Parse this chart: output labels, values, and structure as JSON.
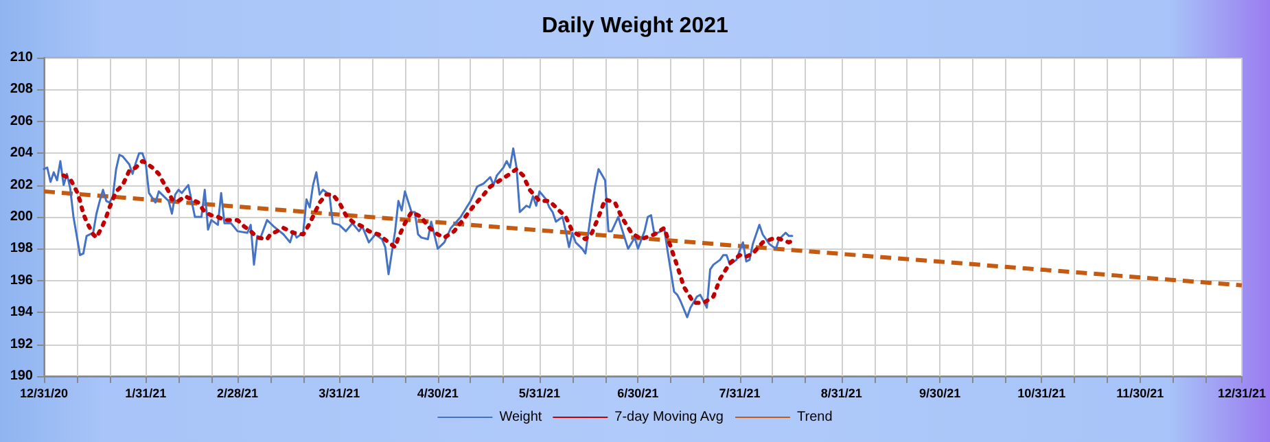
{
  "chart_data": {
    "type": "line",
    "title": "Daily Weight 2021",
    "xlim": [
      "2020-12-31",
      "2021-12-31"
    ],
    "xticks": [
      {
        "value": "2020-12-31",
        "label": "12/31/20"
      },
      {
        "value": "2021-01-10",
        "label": null
      },
      {
        "value": "2021-01-20",
        "label": null
      },
      {
        "value": "2021-01-31",
        "label": "1/31/21"
      },
      {
        "value": "2021-02-10",
        "label": null
      },
      {
        "value": "2021-02-20",
        "label": null
      },
      {
        "value": "2021-02-28",
        "label": "2/28/21"
      },
      {
        "value": "2021-03-10",
        "label": null
      },
      {
        "value": "2021-03-20",
        "label": null
      },
      {
        "value": "2021-03-31",
        "label": "3/31/21"
      },
      {
        "value": "2021-04-10",
        "label": null
      },
      {
        "value": "2021-04-20",
        "label": null
      },
      {
        "value": "2021-04-30",
        "label": "4/30/21"
      },
      {
        "value": "2021-05-10",
        "label": null
      },
      {
        "value": "2021-05-20",
        "label": null
      },
      {
        "value": "2021-05-31",
        "label": "5/31/21"
      },
      {
        "value": "2021-06-10",
        "label": null
      },
      {
        "value": "2021-06-20",
        "label": null
      },
      {
        "value": "2021-06-30",
        "label": "6/30/21"
      },
      {
        "value": "2021-07-10",
        "label": null
      },
      {
        "value": "2021-07-20",
        "label": null
      },
      {
        "value": "2021-07-31",
        "label": "7/31/21"
      },
      {
        "value": "2021-08-10",
        "label": null
      },
      {
        "value": "2021-08-20",
        "label": null
      },
      {
        "value": "2021-08-31",
        "label": "8/31/21"
      },
      {
        "value": "2021-09-10",
        "label": null
      },
      {
        "value": "2021-09-20",
        "label": null
      },
      {
        "value": "2021-09-30",
        "label": "9/30/21"
      },
      {
        "value": "2021-10-10",
        "label": null
      },
      {
        "value": "2021-10-20",
        "label": null
      },
      {
        "value": "2021-10-31",
        "label": "10/31/21"
      },
      {
        "value": "2021-11-10",
        "label": null
      },
      {
        "value": "2021-11-20",
        "label": null
      },
      {
        "value": "2021-11-30",
        "label": "11/30/21"
      },
      {
        "value": "2021-12-10",
        "label": null
      },
      {
        "value": "2021-12-20",
        "label": null
      },
      {
        "value": "2021-12-31",
        "label": "12/31/21"
      }
    ],
    "ylim": [
      190,
      210
    ],
    "yticks": [
      190,
      192,
      194,
      196,
      198,
      200,
      202,
      204,
      206,
      208,
      210
    ],
    "grid": true,
    "legend": "bottom",
    "marker": "none",
    "series": [
      {
        "name": "Weight",
        "color": "#4472c4",
        "line_style": "solid",
        "x": [
          "2020-12-31",
          "2021-01-01",
          "2021-01-02",
          "2021-01-03",
          "2021-01-04",
          "2021-01-05",
          "2021-01-06",
          "2021-01-07",
          "2021-01-08",
          "2021-01-09",
          "2021-01-10",
          "2021-01-11",
          "2021-01-12",
          "2021-01-13",
          "2021-01-15",
          "2021-01-16",
          "2021-01-17",
          "2021-01-18",
          "2021-01-19",
          "2021-01-20",
          "2021-01-21",
          "2021-01-22",
          "2021-01-23",
          "2021-01-24",
          "2021-01-26",
          "2021-01-27",
          "2021-01-28",
          "2021-01-29",
          "2021-01-30",
          "2021-01-31",
          "2021-02-01",
          "2021-02-03",
          "2021-02-04",
          "2021-02-07",
          "2021-02-08",
          "2021-02-09",
          "2021-02-10",
          "2021-02-11",
          "2021-02-13",
          "2021-02-14",
          "2021-02-15",
          "2021-02-17",
          "2021-02-18",
          "2021-02-19",
          "2021-02-20",
          "2021-02-22",
          "2021-02-23",
          "2021-02-24",
          "2021-02-26",
          "2021-02-28",
          "2021-03-03",
          "2021-03-04",
          "2021-03-05",
          "2021-03-06",
          "2021-03-07",
          "2021-03-09",
          "2021-03-10",
          "2021-03-11",
          "2021-03-14",
          "2021-03-16",
          "2021-03-17",
          "2021-03-18",
          "2021-03-20",
          "2021-03-21",
          "2021-03-22",
          "2021-03-23",
          "2021-03-24",
          "2021-03-25",
          "2021-03-26",
          "2021-03-28",
          "2021-03-29",
          "2021-03-31",
          "2021-04-02",
          "2021-04-04",
          "2021-04-06",
          "2021-04-07",
          "2021-04-09",
          "2021-04-11",
          "2021-04-13",
          "2021-04-14",
          "2021-04-15",
          "2021-04-17",
          "2021-04-18",
          "2021-04-19",
          "2021-04-20",
          "2021-04-22",
          "2021-04-23",
          "2021-04-24",
          "2021-04-25",
          "2021-04-27",
          "2021-04-28",
          "2021-04-30",
          "2021-05-02",
          "2021-05-04",
          "2021-05-07",
          "2021-05-10",
          "2021-05-12",
          "2021-05-14",
          "2021-05-16",
          "2021-05-17",
          "2021-05-18",
          "2021-05-20",
          "2021-05-21",
          "2021-05-22",
          "2021-05-23",
          "2021-05-24",
          "2021-05-25",
          "2021-05-27",
          "2021-05-28",
          "2021-05-29",
          "2021-05-30",
          "2021-05-31",
          "2021-06-02",
          "2021-06-03",
          "2021-06-04",
          "2021-06-05",
          "2021-06-07",
          "2021-06-08",
          "2021-06-09",
          "2021-06-10",
          "2021-06-11",
          "2021-06-13",
          "2021-06-14",
          "2021-06-16",
          "2021-06-17",
          "2021-06-18",
          "2021-06-20",
          "2021-06-21",
          "2021-06-22",
          "2021-06-24",
          "2021-06-25",
          "2021-06-27",
          "2021-06-29",
          "2021-06-30",
          "2021-07-02",
          "2021-07-03",
          "2021-07-04",
          "2021-07-05",
          "2021-07-07",
          "2021-07-08",
          "2021-07-09",
          "2021-07-11",
          "2021-07-12",
          "2021-07-13",
          "2021-07-15",
          "2021-07-16",
          "2021-07-18",
          "2021-07-19",
          "2021-07-21",
          "2021-07-22",
          "2021-07-23",
          "2021-07-25",
          "2021-07-26",
          "2021-07-27",
          "2021-07-28",
          "2021-07-30",
          "2021-07-31",
          "2021-08-01",
          "2021-08-02",
          "2021-08-03",
          "2021-08-04",
          "2021-08-05",
          "2021-08-06",
          "2021-08-07",
          "2021-08-09",
          "2021-08-11",
          "2021-08-12",
          "2021-08-14",
          "2021-08-15",
          "2021-08-16"
        ],
        "values": [
          203.0,
          203.1,
          202.2,
          202.8,
          202.3,
          203.5,
          202.0,
          202.7,
          201.8,
          200.0,
          198.8,
          197.6,
          197.7,
          198.8,
          199.0,
          200.2,
          201.0,
          201.7,
          201.0,
          200.9,
          201.3,
          203.0,
          203.9,
          203.8,
          203.3,
          202.7,
          203.4,
          204.0,
          204.0,
          203.4,
          201.5,
          200.9,
          201.6,
          201.0,
          200.2,
          201.4,
          201.7,
          201.5,
          202.0,
          201.0,
          200.0,
          200.0,
          201.7,
          199.2,
          199.8,
          199.5,
          201.5,
          199.6,
          199.6,
          199.1,
          199.0,
          199.5,
          197.0,
          198.8,
          198.7,
          199.8,
          199.6,
          199.4,
          198.9,
          198.4,
          199.1,
          198.7,
          199.0,
          201.1,
          200.6,
          202.0,
          202.8,
          201.4,
          201.7,
          201.4,
          199.6,
          199.5,
          199.1,
          199.6,
          199.1,
          199.4,
          198.4,
          198.9,
          198.6,
          198.1,
          196.4,
          199.1,
          201.0,
          200.4,
          201.6,
          200.3,
          200.3,
          198.9,
          198.7,
          198.6,
          199.7,
          198.0,
          198.4,
          199.3,
          200.0,
          201.0,
          201.9,
          202.1,
          202.5,
          202.0,
          202.6,
          203.1,
          203.5,
          203.1,
          204.3,
          203.1,
          200.3,
          200.7,
          200.6,
          201.3,
          200.7,
          201.6,
          201.1,
          200.6,
          200.3,
          199.7,
          200.0,
          199.1,
          198.1,
          199.0,
          198.4,
          198.0,
          197.7,
          200.7,
          202.0,
          203.0,
          202.3,
          199.1,
          199.1,
          200.0,
          199.3,
          198.0,
          198.7,
          198.0,
          199.1,
          200.0,
          200.1,
          198.9,
          199.1,
          199.3,
          197.9,
          195.3,
          195.1,
          194.7,
          193.7,
          194.3,
          195.0,
          195.1,
          194.3,
          196.7,
          197.0,
          197.3,
          197.6,
          197.6,
          197.0,
          197.3,
          197.9,
          198.4,
          197.2,
          197.3,
          198.3,
          198.9,
          199.5,
          198.9,
          198.3,
          198.0,
          198.6,
          199.0,
          198.8,
          198.8
        ]
      },
      {
        "name": "7-day Moving Avg",
        "color": "#c00000",
        "line_style": "dotted",
        "x": [
          "2021-01-06",
          "2021-01-08",
          "2021-01-10",
          "2021-01-11",
          "2021-01-12",
          "2021-01-13",
          "2021-01-15",
          "2021-01-16",
          "2021-01-18",
          "2021-01-19",
          "2021-01-20",
          "2021-01-22",
          "2021-01-24",
          "2021-01-26",
          "2021-01-28",
          "2021-01-30",
          "2021-01-31",
          "2021-02-02",
          "2021-02-04",
          "2021-02-05",
          "2021-02-07",
          "2021-02-08",
          "2021-02-10",
          "2021-02-12",
          "2021-02-14",
          "2021-02-16",
          "2021-02-18",
          "2021-02-20",
          "2021-02-22",
          "2021-02-24",
          "2021-02-28",
          "2021-03-02",
          "2021-03-04",
          "2021-03-06",
          "2021-03-09",
          "2021-03-10",
          "2021-03-14",
          "2021-03-17",
          "2021-03-20",
          "2021-03-22",
          "2021-03-25",
          "2021-03-27",
          "2021-03-29",
          "2021-03-31",
          "2021-04-02",
          "2021-04-04",
          "2021-04-07",
          "2021-04-09",
          "2021-04-12",
          "2021-04-15",
          "2021-04-17",
          "2021-04-18",
          "2021-04-20",
          "2021-04-22",
          "2021-04-25",
          "2021-04-27",
          "2021-04-30",
          "2021-05-02",
          "2021-05-05",
          "2021-05-08",
          "2021-05-11",
          "2021-05-14",
          "2021-05-16",
          "2021-05-19",
          "2021-05-22",
          "2021-05-24",
          "2021-05-26",
          "2021-05-28",
          "2021-05-31",
          "2021-06-03",
          "2021-06-06",
          "2021-06-08",
          "2021-06-10",
          "2021-06-14",
          "2021-06-16",
          "2021-06-18",
          "2021-06-20",
          "2021-06-23",
          "2021-06-25",
          "2021-06-28",
          "2021-07-01",
          "2021-07-05",
          "2021-07-08",
          "2021-07-10",
          "2021-07-12",
          "2021-07-14",
          "2021-07-17",
          "2021-07-20",
          "2021-07-23",
          "2021-07-25",
          "2021-07-28",
          "2021-07-31",
          "2021-08-02",
          "2021-08-04",
          "2021-08-07",
          "2021-08-11",
          "2021-08-15",
          "2021-08-17"
        ],
        "values": [
          202.6,
          202.4,
          201.6,
          201.0,
          200.2,
          199.7,
          198.9,
          198.7,
          199.5,
          200.0,
          200.6,
          201.6,
          202.0,
          202.9,
          203.1,
          203.5,
          203.4,
          203.1,
          202.7,
          202.3,
          201.6,
          201.1,
          201.0,
          201.3,
          201.1,
          200.9,
          200.3,
          200.1,
          200.0,
          199.8,
          199.8,
          199.4,
          199.1,
          198.7,
          198.6,
          198.9,
          199.3,
          199.0,
          198.9,
          199.6,
          200.9,
          201.4,
          201.4,
          200.9,
          200.1,
          199.7,
          199.4,
          199.1,
          198.9,
          198.4,
          198.1,
          198.7,
          199.6,
          200.3,
          200.0,
          199.4,
          198.9,
          198.7,
          199.1,
          199.9,
          200.7,
          201.4,
          201.9,
          202.3,
          202.7,
          203.0,
          202.6,
          201.7,
          201.0,
          201.0,
          200.4,
          200.0,
          199.1,
          198.6,
          199.0,
          200.0,
          201.1,
          200.9,
          200.0,
          199.0,
          198.6,
          198.9,
          199.3,
          198.1,
          196.9,
          195.6,
          194.6,
          194.6,
          195.0,
          196.1,
          197.1,
          197.6,
          197.5,
          197.7,
          198.4,
          198.7,
          198.4,
          198.6
        ]
      },
      {
        "name": "Trend",
        "color": "#c55a11",
        "line_style": "dashed",
        "x": [
          "2020-12-31",
          "2021-12-31"
        ],
        "values": [
          201.6,
          195.7
        ]
      }
    ]
  }
}
